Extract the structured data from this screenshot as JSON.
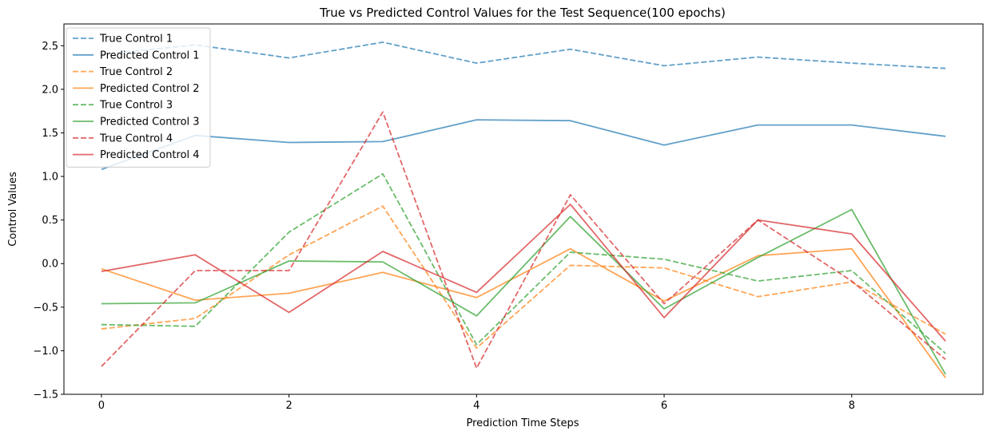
{
  "chart_data": {
    "type": "line",
    "title": "True vs Predicted Control Values for the Test Sequence(100 epochs)",
    "xlabel": "Prediction Time Steps",
    "ylabel": "Control Values",
    "x": [
      0,
      1,
      2,
      3,
      4,
      5,
      6,
      7,
      8,
      9
    ],
    "xlim": [
      -0.4,
      9.4
    ],
    "ylim": [
      -1.5,
      2.75
    ],
    "xticks": [
      0,
      2,
      4,
      6,
      8
    ],
    "yticks": [
      -1.5,
      -1.0,
      -0.5,
      0.0,
      0.5,
      1.0,
      1.5,
      2.0,
      2.5
    ],
    "xtick_labels": [
      "0",
      "2",
      "4",
      "6",
      "8"
    ],
    "ytick_labels": [
      "−1.5",
      "−1.0",
      "−0.5",
      "0.0",
      "0.5",
      "1.0",
      "1.5",
      "2.0",
      "2.5"
    ],
    "grid": false,
    "legend_position": "upper-left",
    "series": [
      {
        "name": "True Control 1",
        "style": "dashed",
        "color": "#1f77b4",
        "values": [
          2.4,
          2.51,
          2.36,
          2.54,
          2.3,
          2.46,
          2.27,
          2.37,
          2.3,
          2.24
        ]
      },
      {
        "name": "Predicted Control 1",
        "style": "solid",
        "color": "#1f77b4",
        "values": [
          1.08,
          1.47,
          1.39,
          1.4,
          1.65,
          1.64,
          1.36,
          1.59,
          1.59,
          1.46
        ]
      },
      {
        "name": "True Control 2",
        "style": "dashed",
        "color": "#ff7f0e",
        "values": [
          -0.75,
          -0.63,
          0.1,
          0.66,
          -0.97,
          -0.02,
          -0.05,
          -0.38,
          -0.21,
          -0.81
        ]
      },
      {
        "name": "Predicted Control 2",
        "style": "solid",
        "color": "#ff7f0e",
        "values": [
          -0.06,
          -0.42,
          -0.34,
          -0.1,
          -0.39,
          0.17,
          -0.43,
          0.09,
          0.17,
          -1.31
        ]
      },
      {
        "name": "True Control 3",
        "style": "dashed",
        "color": "#2ca02c",
        "values": [
          -0.7,
          -0.72,
          0.36,
          1.03,
          -0.93,
          0.13,
          0.05,
          -0.2,
          -0.08,
          -1.03
        ]
      },
      {
        "name": "Predicted Control 3",
        "style": "solid",
        "color": "#2ca02c",
        "values": [
          -0.46,
          -0.45,
          0.03,
          0.02,
          -0.6,
          0.54,
          -0.52,
          0.07,
          0.62,
          -1.27
        ]
      },
      {
        "name": "True Control 4",
        "style": "dashed",
        "color": "#d62728",
        "values": [
          -1.18,
          -0.08,
          -0.08,
          1.74,
          -1.2,
          0.79,
          -0.46,
          0.5,
          -0.2,
          -1.1
        ]
      },
      {
        "name": "Predicted Control 4",
        "style": "solid",
        "color": "#d62728",
        "values": [
          -0.09,
          0.1,
          -0.56,
          0.14,
          -0.33,
          0.68,
          -0.62,
          0.5,
          0.34,
          -0.89
        ]
      }
    ]
  }
}
